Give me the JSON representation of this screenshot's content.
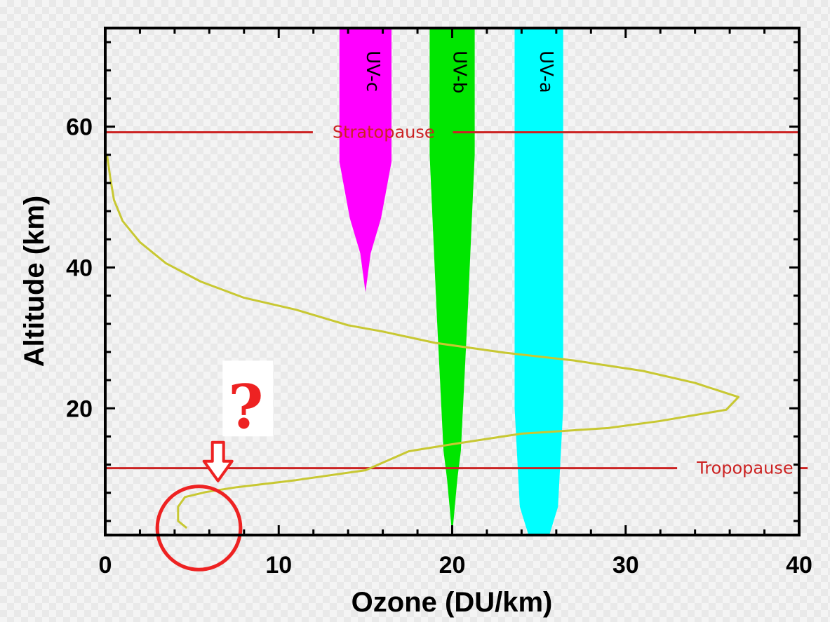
{
  "chart_data": {
    "type": "line",
    "xlabel": "Ozone (DU/km)",
    "ylabel": "Altitude (km)",
    "xlim": [
      0,
      40
    ],
    "ylim": [
      2,
      74
    ],
    "x_ticks": [
      "0",
      "10",
      "20",
      "30",
      "40"
    ],
    "y_ticks": [
      "20",
      "40",
      "60"
    ],
    "grid": false,
    "series": [
      {
        "color": "#c8c832",
        "points": [
          [
            4.7,
            3.0
          ],
          [
            4.2,
            4.0
          ],
          [
            4.2,
            6.0
          ],
          [
            4.6,
            7.4
          ],
          [
            5.8,
            8.1
          ],
          [
            7.6,
            8.8
          ],
          [
            11.0,
            9.8
          ],
          [
            15.0,
            11.2
          ],
          [
            17.5,
            13.9
          ],
          [
            20.0,
            14.9
          ],
          [
            24.0,
            16.4
          ],
          [
            29.0,
            17.2
          ],
          [
            32.0,
            18.2
          ],
          [
            35.8,
            19.8
          ],
          [
            36.5,
            21.6
          ],
          [
            34.0,
            23.6
          ],
          [
            31.0,
            25.3
          ],
          [
            27.0,
            26.8
          ],
          [
            23.0,
            27.9
          ],
          [
            19.0,
            29.3
          ],
          [
            16.0,
            30.9
          ],
          [
            14.0,
            31.8
          ],
          [
            11.0,
            34.0
          ],
          [
            8.0,
            35.7
          ],
          [
            5.5,
            38.0
          ],
          [
            3.5,
            40.6
          ],
          [
            2.0,
            43.6
          ],
          [
            1.0,
            46.6
          ],
          [
            0.5,
            49.6
          ],
          [
            0.3,
            52.6
          ],
          [
            0.1,
            56.0
          ]
        ]
      }
    ],
    "bands": [
      {
        "label": "UV-c",
        "color": "#ff00ff",
        "shape": [
          [
            15.0,
            32.0
          ],
          [
            15.0,
            36.5
          ],
          [
            15.3,
            42.0
          ],
          [
            15.9,
            47.0
          ],
          [
            16.5,
            55.0
          ],
          [
            16.5,
            74.0
          ]
        ],
        "center_top": 15.0,
        "left_edge_top": 13.6
      },
      {
        "label": "UV-b",
        "color": "#00e600",
        "shape": [
          [
            20.0,
            2.0
          ],
          [
            20.3,
            10.0
          ],
          [
            20.5,
            14.0
          ],
          [
            20.9,
            34.0
          ],
          [
            21.3,
            56.0
          ],
          [
            21.3,
            74.0
          ]
        ],
        "center_top": 20.0,
        "left_edge_top": 18.6
      },
      {
        "label": "UV-a",
        "color": "#00ffff",
        "shape": [
          [
            25.6,
            2.0
          ],
          [
            26.1,
            6.0
          ],
          [
            26.4,
            20.0
          ],
          [
            26.4,
            74.0
          ]
        ],
        "center_top": 25.0,
        "left_edge_top": 23.6
      }
    ],
    "reference_lines": [
      {
        "label": "Stratopause",
        "y": 59.2,
        "color": "#cc2222",
        "label_x": 13.1
      },
      {
        "label": "Tropopause",
        "y": 11.5,
        "color": "#cc2222",
        "label_x": 34.1
      }
    ],
    "annotations": {
      "question_mark": "?",
      "color": "#ee2222",
      "arrow_target": [
        6.5,
        9.5
      ],
      "circle_center": [
        5.4,
        3.0
      ],
      "circle_radius_du": 2.4
    }
  }
}
